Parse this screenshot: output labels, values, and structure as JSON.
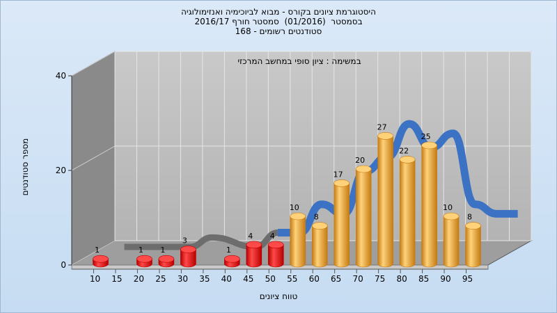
{
  "chart_data": {
    "type": "bar",
    "title_lines": [
      "היסטוגרמת ציונים בקורס - מבוא לביוכימיה ואנזימולוגיה",
      "בסמסטר  (01/2016)  סמסטר חורף 2016/17",
      "168 - סטודנטים רשומים"
    ],
    "note": "במשימה : ציון סופי במחשב המרכזי",
    "xlabel": "טווח ציונים",
    "ylabel": "מספר סטודנטים",
    "x_ticks": [
      "10",
      "15",
      "20",
      "25",
      "30",
      "35",
      "40",
      "45",
      "50",
      "55",
      "60",
      "65",
      "70",
      "75",
      "80",
      "85",
      "90",
      "95"
    ],
    "y_ticks": [
      "0",
      "20",
      "40"
    ],
    "ylim": [
      0,
      40
    ],
    "grid": true,
    "bars": [
      {
        "x": "10",
        "value": 1,
        "color": "red"
      },
      {
        "x": "20",
        "value": 1,
        "color": "red"
      },
      {
        "x": "25",
        "value": 1,
        "color": "red"
      },
      {
        "x": "30",
        "value": 3,
        "color": "red"
      },
      {
        "x": "40",
        "value": 1,
        "color": "red"
      },
      {
        "x": "45",
        "value": 4,
        "color": "red"
      },
      {
        "x": "50",
        "value": 4,
        "color": "red"
      },
      {
        "x": "55",
        "value": 10,
        "color": "orange"
      },
      {
        "x": "60",
        "value": 8,
        "color": "orange"
      },
      {
        "x": "65",
        "value": 17,
        "color": "orange"
      },
      {
        "x": "70",
        "value": 20,
        "color": "orange"
      },
      {
        "x": "75",
        "value": 27,
        "color": "orange"
      },
      {
        "x": "80",
        "value": 22,
        "color": "orange"
      },
      {
        "x": "85",
        "value": 25,
        "color": "orange"
      },
      {
        "x": "90",
        "value": 10,
        "color": "orange"
      },
      {
        "x": "95",
        "value": 8,
        "color": "orange"
      }
    ],
    "colors": {
      "red_light": "#ff4a4a",
      "red_dark": "#b80000",
      "orange_light": "#ffd27a",
      "orange_dark": "#c47a12",
      "ribbon_blue": "#3b72c4",
      "ribbon_gray": "#6d6d6d",
      "wall_back": "#bdbdbd",
      "wall_side": "#8a8a8a"
    }
  }
}
